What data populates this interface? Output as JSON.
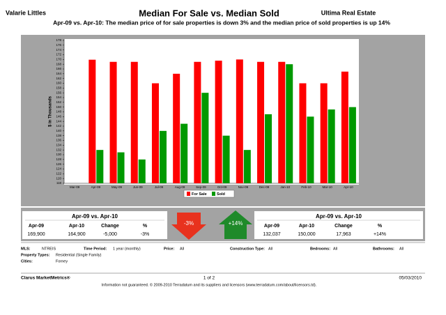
{
  "header": {
    "agent": "Valarie Littles",
    "title": "Median For Sale vs. Median Sold",
    "company": "Ultima Real Estate",
    "subtitle": "Apr-09 vs. Apr-10:  The median price of for sale properties is down 3% and the median price of sold properties is up 14%"
  },
  "chart_data": {
    "type": "bar",
    "y_label": "$ in Thousands",
    "categories": [
      "Mar-09",
      "Apr-09",
      "May-09",
      "Jun-09",
      "Jul-09",
      "Aug-09",
      "Sep-09",
      "Oct-09",
      "Nov-09",
      "Dec-09",
      "Jan-10",
      "Feb-10",
      "Mar-10",
      "Apr-10"
    ],
    "series": [
      {
        "name": "For Sale",
        "color": "#ff0000",
        "values": [
          null,
          169.9,
          169,
          169,
          160,
          164,
          169,
          169.5,
          170,
          169,
          169,
          160,
          160,
          164.9
        ]
      },
      {
        "name": "Sold",
        "color": "#009900",
        "values": [
          null,
          132,
          131,
          128,
          140,
          143,
          156,
          138,
          132,
          147,
          168,
          146,
          149,
          150
        ]
      }
    ],
    "ylim": [
      118,
      178
    ],
    "yticks": [
      118,
      120,
      122,
      124,
      126,
      128,
      130,
      132,
      134,
      136,
      138,
      140,
      142,
      144,
      146,
      148,
      150,
      152,
      154,
      156,
      158,
      160,
      162,
      164,
      166,
      168,
      170,
      172,
      174,
      176,
      178
    ],
    "grid": false
  },
  "summary": {
    "left": {
      "heading": "Apr-09 vs. Apr-10",
      "columns": [
        "Apr-09",
        "Apr-10",
        "Change",
        "%"
      ],
      "row": [
        "169,900",
        "164,900",
        "-5,000",
        "-3%"
      ]
    },
    "left_arrow": "-3%",
    "right_arrow": "+14%",
    "right": {
      "heading": "Apr-09 vs. Apr-10",
      "columns": [
        "Apr-09",
        "Apr-10",
        "Change",
        "%"
      ],
      "row": [
        "132,037",
        "150,000",
        "17,963",
        "+14%"
      ]
    }
  },
  "criteria": [
    {
      "label": "MLS:",
      "value": "NTREIS"
    },
    {
      "label": "Time Period:",
      "value": "1 year (monthly)"
    },
    {
      "label": "Price:",
      "value": "All"
    },
    {
      "label": "Construction Type:",
      "value": "All"
    },
    {
      "label": "Bedrooms:",
      "value": "All"
    },
    {
      "label": "Bathrooms:",
      "value": "All"
    },
    {
      "label": "Property Types:",
      "value": "Residential (Single Family)"
    },
    {
      "label": "Cities:",
      "value": "Forney"
    }
  ],
  "footer": {
    "brand": "Clarus MarketMetrics®",
    "page": "1 of 2",
    "date": "05/03/2010",
    "disclaimer": "Information not guaranteed.  © 2009-2010 Terradatum and its suppliers and licensors (www.terradatum.com/about/licensors.td)."
  }
}
